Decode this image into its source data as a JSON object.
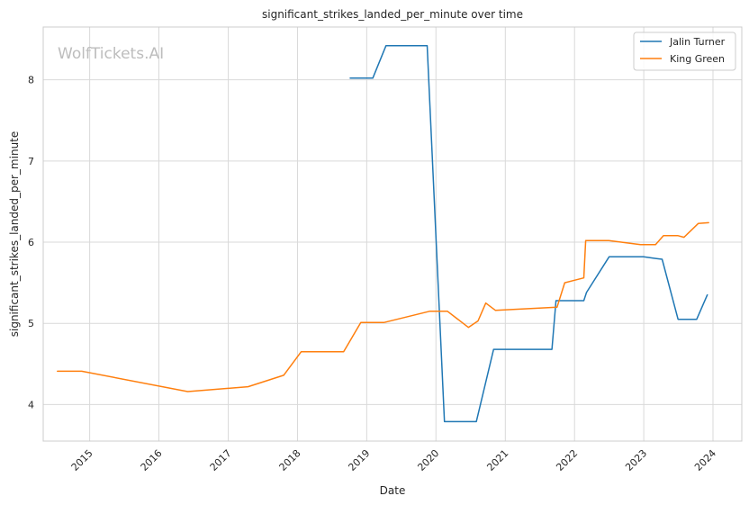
{
  "chart_data": {
    "type": "line",
    "title": "significant_strikes_landed_per_minute over time",
    "xlabel": "Date",
    "ylabel": "significant_strikes_landed_per_minute",
    "watermark": "WolfTickets.AI",
    "x_ticks": [
      "2015",
      "2016",
      "2017",
      "2018",
      "2019",
      "2020",
      "2021",
      "2022",
      "2023",
      "2024"
    ],
    "y_ticks": [
      "4",
      "5",
      "6",
      "7",
      "8"
    ],
    "xlim": [
      "2014-05-01",
      "2024-06-01"
    ],
    "ylim": [
      3.55,
      8.65
    ],
    "grid": true,
    "legend_position": "top-right",
    "series": [
      {
        "name": "Jalin Turner",
        "color": "#1f77b4",
        "points": [
          [
            "2018-10-06",
            8.02
          ],
          [
            "2019-02-02",
            8.02
          ],
          [
            "2019-04-13",
            8.42
          ],
          [
            "2019-11-16",
            8.42
          ],
          [
            "2020-02-15",
            3.79
          ],
          [
            "2020-08-01",
            3.79
          ],
          [
            "2020-10-31",
            4.68
          ],
          [
            "2021-09-04",
            4.68
          ],
          [
            "2021-09-25",
            5.28
          ],
          [
            "2022-02-19",
            5.28
          ],
          [
            "2022-03-05",
            5.38
          ],
          [
            "2022-07-02",
            5.82
          ],
          [
            "2022-12-31",
            5.82
          ],
          [
            "2023-03-04",
            5.8
          ],
          [
            "2023-04-08",
            5.79
          ],
          [
            "2023-07-01",
            5.05
          ],
          [
            "2023-10-07",
            5.05
          ],
          [
            "2023-12-02",
            5.35
          ]
        ]
      },
      {
        "name": "King Green",
        "color": "#ff7f0e",
        "points": [
          [
            "2014-07-15",
            4.41
          ],
          [
            "2014-11-20",
            4.41
          ],
          [
            "2016-06-01",
            4.16
          ],
          [
            "2017-04-15",
            4.22
          ],
          [
            "2017-10-20",
            4.36
          ],
          [
            "2018-01-20",
            4.65
          ],
          [
            "2018-09-01",
            4.65
          ],
          [
            "2018-12-01",
            5.01
          ],
          [
            "2019-04-01",
            5.01
          ],
          [
            "2019-12-01",
            5.15
          ],
          [
            "2020-03-01",
            5.15
          ],
          [
            "2020-06-20",
            4.95
          ],
          [
            "2020-08-10",
            5.03
          ],
          [
            "2020-09-20",
            5.25
          ],
          [
            "2020-11-10",
            5.16
          ],
          [
            "2021-10-01",
            5.2
          ],
          [
            "2021-11-10",
            5.5
          ],
          [
            "2022-02-19",
            5.56
          ],
          [
            "2022-03-01",
            6.02
          ],
          [
            "2022-07-01",
            6.02
          ],
          [
            "2022-12-15",
            5.97
          ],
          [
            "2023-03-04",
            5.97
          ],
          [
            "2023-04-15",
            6.08
          ],
          [
            "2023-07-01",
            6.08
          ],
          [
            "2023-08-01",
            6.06
          ],
          [
            "2023-10-15",
            6.23
          ],
          [
            "2023-12-09",
            6.24
          ]
        ]
      }
    ]
  }
}
